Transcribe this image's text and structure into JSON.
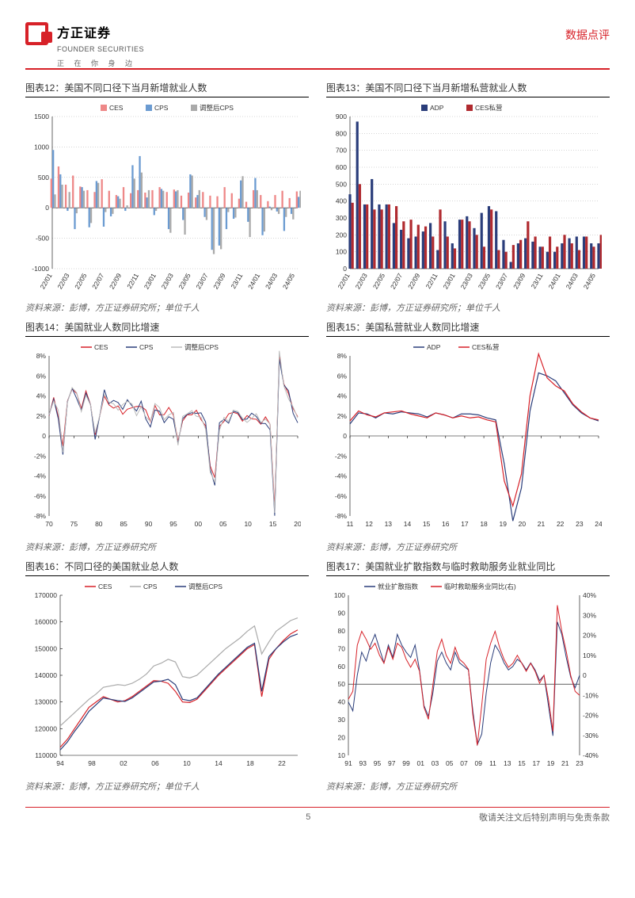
{
  "header": {
    "brand_cn": "方正证券",
    "brand_en": "FOUNDER SECURITIES",
    "tag": "正 在 你 身 边",
    "doc_type": "数据点评"
  },
  "charts": {
    "c12": {
      "title": "图表12：美国不同口径下当月新增就业人数",
      "source": "资料来源：彭博，方正证券研究所；单位千人",
      "legend": [
        {
          "label": "CES",
          "color": "#e88"
        },
        {
          "label": "CPS",
          "color": "#6b9bd1"
        },
        {
          "label": "调整后CPS",
          "color": "#aaa"
        }
      ],
      "xlabels": [
        "22/01",
        "22/03",
        "22/05",
        "22/07",
        "22/09",
        "22/11",
        "23/01",
        "23/03",
        "23/05",
        "23/07",
        "23/09",
        "23/11",
        "24/01",
        "24/03",
        "24/05"
      ],
      "yticks": [
        -1000,
        -500,
        0,
        500,
        1000,
        1500
      ],
      "series": {
        "CES": [
          480,
          680,
          380,
          530,
          350,
          290,
          260,
          470,
          280,
          210,
          340,
          240,
          290,
          250,
          290,
          340,
          260,
          300,
          200,
          250,
          170,
          260,
          200,
          190,
          340,
          240,
          150,
          100,
          290,
          210,
          110,
          210,
          280,
          160,
          270
        ],
        "CPS": [
          950,
          550,
          -50,
          -350,
          340,
          -320,
          440,
          -310,
          -140,
          190,
          -50,
          700,
          850,
          170,
          -120,
          310,
          -350,
          270,
          -200,
          550,
          210,
          -150,
          -690,
          -620,
          -350,
          -180,
          450,
          -230,
          490,
          -450,
          20,
          -60,
          -380,
          -100,
          180
        ],
        "ADJ": [
          220,
          380,
          260,
          -90,
          280,
          -250,
          410,
          -70,
          -100,
          150,
          40,
          480,
          580,
          290,
          -50,
          280,
          -410,
          290,
          -440,
          530,
          290,
          -200,
          -760,
          -680,
          -70,
          -160,
          520,
          -480,
          290,
          -390,
          -40,
          -100,
          -150,
          -190,
          280
        ]
      }
    },
    "c13": {
      "title": "图表13：美国不同口径下当月新增私营就业人数",
      "source": "资料来源：彭博，方正证券研究所；单位千人",
      "legend": [
        {
          "label": "ADP",
          "color": "#2a3d7a"
        },
        {
          "label": "CES私营",
          "color": "#b02a2f"
        }
      ],
      "xlabels": [
        "22/01",
        "22/03",
        "22/05",
        "22/07",
        "22/09",
        "22/11",
        "23/01",
        "23/03",
        "23/05",
        "23/07",
        "23/09",
        "23/11",
        "24/01",
        "24/03",
        "24/05"
      ],
      "yticks": [
        0,
        100,
        200,
        300,
        400,
        500,
        600,
        700,
        800,
        900
      ],
      "series": {
        "ADP": [
          440,
          870,
          380,
          530,
          380,
          380,
          270,
          230,
          180,
          190,
          220,
          270,
          110,
          280,
          150,
          290,
          310,
          240,
          330,
          370,
          340,
          170,
          40,
          150,
          180,
          160,
          130,
          100,
          100,
          150,
          180,
          190,
          190,
          150,
          150
        ],
        "CESP": [
          390,
          500,
          380,
          350,
          350,
          380,
          370,
          280,
          290,
          260,
          250,
          190,
          350,
          190,
          120,
          290,
          280,
          200,
          130,
          350,
          110,
          100,
          140,
          170,
          280,
          190,
          130,
          190,
          130,
          200,
          150,
          110,
          190,
          130,
          200
        ]
      }
    },
    "c14": {
      "title": "图表14：美国就业人数同比增速",
      "source": "资料来源：彭博，方正证券研究所",
      "legend": [
        {
          "label": "CES",
          "color": "#d72128"
        },
        {
          "label": "CPS",
          "color": "#2a3d7a"
        },
        {
          "label": "调整后CPS",
          "color": "#bbb"
        }
      ],
      "xlabels": [
        "70",
        "75",
        "80",
        "85",
        "90",
        "95",
        "00",
        "05",
        "10",
        "15",
        "20"
      ],
      "yticks": [
        "-8%",
        "-6%",
        "-4%",
        "-2%",
        "0",
        "2%",
        "4%",
        "6%",
        "8%"
      ]
    },
    "c15": {
      "title": "图表15：美国私营就业人数同比增速",
      "source": "资料来源：彭博，方正证券研究所",
      "legend": [
        {
          "label": "ADP",
          "color": "#2a3d7a"
        },
        {
          "label": "CES私营",
          "color": "#d72128"
        }
      ],
      "xlabels": [
        "11",
        "12",
        "13",
        "14",
        "15",
        "16",
        "17",
        "18",
        "19",
        "20",
        "21",
        "22",
        "23",
        "24"
      ],
      "yticks": [
        "-8%",
        "-6%",
        "-4%",
        "-2%",
        "0",
        "2%",
        "4%",
        "6%",
        "8%"
      ]
    },
    "c16": {
      "title": "图表16：不同口径的美国就业总人数",
      "source": "资料来源：彭博，方正证券研究所；单位千人",
      "legend": [
        {
          "label": "CES",
          "color": "#d72128"
        },
        {
          "label": "CPS",
          "color": "#aaa"
        },
        {
          "label": "调整后CPS",
          "color": "#2a3d7a"
        }
      ],
      "xlabels": [
        "94",
        "98",
        "02",
        "06",
        "10",
        "14",
        "18",
        "22"
      ],
      "yticks": [
        110000,
        120000,
        130000,
        140000,
        150000,
        160000,
        170000
      ]
    },
    "c17": {
      "title": "图表17：美国就业扩散指数与临时救助服务业就业同比",
      "source": "资料来源：彭博，方正证券研究所",
      "legend": [
        {
          "label": "就业扩散指数",
          "color": "#2a3d7a"
        },
        {
          "label": "临时救助服务业同比(右)",
          "color": "#d72128"
        }
      ],
      "xlabels": [
        "91",
        "93",
        "95",
        "97",
        "99",
        "01",
        "03",
        "05",
        "07",
        "09",
        "11",
        "13",
        "15",
        "17",
        "19",
        "21",
        "23"
      ],
      "yticks_l": [
        10,
        20,
        30,
        40,
        50,
        60,
        70,
        80,
        90,
        100
      ],
      "yticks_r": [
        "-40%",
        "-30%",
        "-20%",
        "-10%",
        "0",
        "10%",
        "20%",
        "30%",
        "40%"
      ]
    }
  },
  "footer": {
    "page": "5",
    "disclaimer": "敬请关注文后特别声明与免责条款"
  }
}
